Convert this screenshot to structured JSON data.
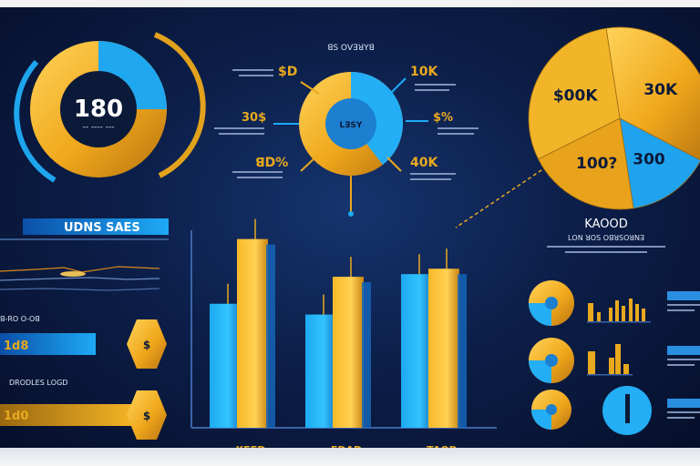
{
  "chart_data": [
    {
      "type": "pie",
      "center_label": "180",
      "center_sub": "-- ---- ---"
    },
    {
      "type": "pie",
      "title": "ꓭꓢ ꓳꓦꓱꓤꓬꓭ",
      "center_label": "ꓡꓱꓢꓬ",
      "callouts": [
        "$D",
        "10K",
        "30$",
        "$%",
        "ꓭD%",
        "40K"
      ]
    },
    {
      "type": "pie",
      "slices": [
        {
          "label": "30K",
          "value": 35
        },
        {
          "label": "300",
          "value": 15
        },
        {
          "label": "100?",
          "value": 20
        },
        {
          "label": "$00K",
          "value": 30
        }
      ]
    },
    {
      "type": "bar",
      "title": "UDNS SAES",
      "categories": [
        "KEED",
        "EDAD",
        "TAOD"
      ],
      "series": [
        {
          "values": [
            46,
            42,
            57
          ]
        },
        {
          "values": [
            70,
            56,
            59
          ]
        }
      ],
      "ylim": [
        0,
        80
      ]
    },
    {
      "type": "bar",
      "bars": [
        {
          "label": "1d8",
          "value": 62
        },
        {
          "label": "1d0",
          "value": 88
        }
      ],
      "labels_left": [
        "ꓭ-ꓣꓳ ꓳ-ꓳꓭ",
        "ꓓꓣꓳꓓꓡꓰꓢ ꓡꓳꓖꓓ"
      ]
    },
    {
      "type": "table",
      "title": "KAOOD",
      "subtitle": "ꓡꓳꓠ ꓤꓳꓢ ꓳꓭꓤꓢꓳꓤꓠꓱ"
    }
  ]
}
